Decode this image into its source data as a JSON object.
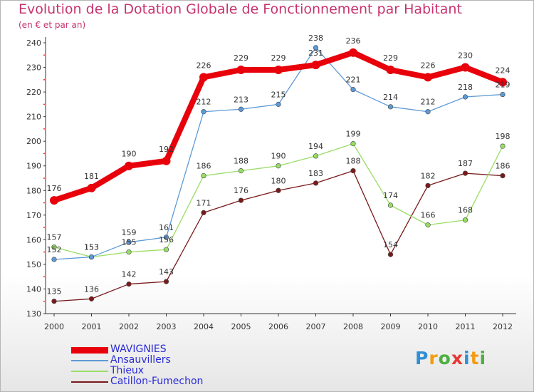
{
  "title": "Evolution de la Dotation Globale de Fonctionnement par Habitant",
  "subtitle": "(en € et par an)",
  "logo": {
    "text": "Proxiti",
    "letter_colors": [
      "#2f8fd6",
      "#f39c12",
      "#4caf3f",
      "#e53935",
      "#2f8fd6",
      "#f39c12",
      "#4caf3f"
    ]
  },
  "chart_data": {
    "type": "line",
    "x": [
      "2000",
      "2001",
      "2002",
      "2003",
      "2004",
      "2005",
      "2006",
      "2007",
      "2008",
      "2009",
      "2010",
      "2011",
      "2012"
    ],
    "ylim": [
      130,
      240
    ],
    "yticks": [
      130,
      140,
      150,
      160,
      170,
      180,
      190,
      200,
      210,
      220,
      230,
      240
    ],
    "grid": false,
    "legend_position": "bottom-left",
    "series": [
      {
        "name": "WAVIGNIES",
        "color": "#e8000b",
        "values": [
          176,
          181,
          190,
          192,
          226,
          229,
          229,
          231,
          236,
          229,
          226,
          230,
          224
        ]
      },
      {
        "name": "Ansauvillers",
        "color": "#5e9ad6",
        "values": [
          152,
          153,
          159,
          161,
          212,
          213,
          215,
          238,
          221,
          214,
          212,
          218,
          219
        ]
      },
      {
        "name": "Thieux",
        "color": "#99dd66",
        "values": [
          157,
          153,
          155,
          156,
          186,
          188,
          190,
          194,
          199,
          174,
          166,
          168,
          198
        ]
      },
      {
        "name": "Catillon-Fumechon",
        "color": "#7a1a1a",
        "values": [
          135,
          136,
          142,
          143,
          171,
          176,
          180,
          183,
          188,
          154,
          182,
          187,
          186
        ]
      }
    ]
  }
}
